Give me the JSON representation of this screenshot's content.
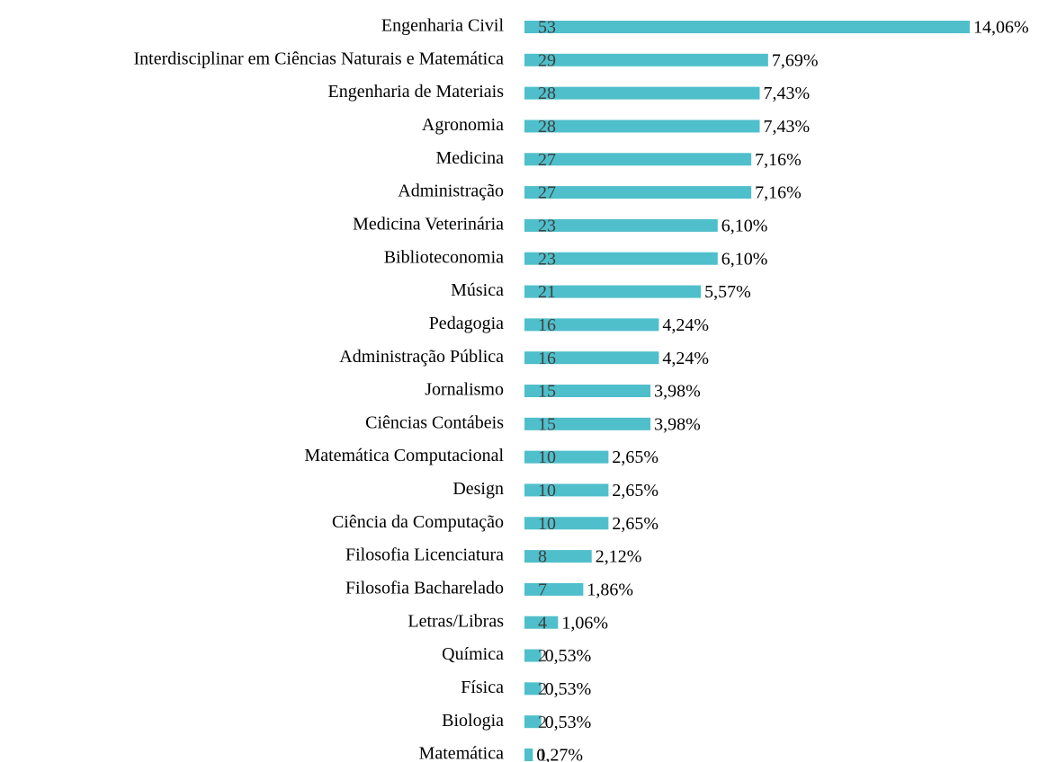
{
  "chart_data": {
    "type": "barh",
    "categories": [
      "Engenharia Civil",
      "Interdisciplinar em Ciências Naturais e Matemática",
      "Engenharia de Materiais",
      "Agronomia",
      "Medicina",
      "Administração",
      "Medicina Veterinária",
      "Biblioteconomia",
      "Música",
      "Pedagogia",
      "Administração Pública",
      "Jornalismo",
      "Ciências Contábeis",
      "Matemática Computacional",
      "Design",
      "Ciência da Computação",
      "Filosofia Licenciatura",
      "Filosofia Bacharelado",
      "Letras/Libras",
      "Química",
      "Física",
      "Biologia",
      "Matemática"
    ],
    "values": [
      53,
      29,
      28,
      28,
      27,
      27,
      23,
      23,
      21,
      16,
      16,
      15,
      15,
      10,
      10,
      10,
      8,
      7,
      4,
      2,
      2,
      2,
      1
    ],
    "shares": [
      14.06,
      7.69,
      7.43,
      7.43,
      7.16,
      7.16,
      6.1,
      6.1,
      5.57,
      4.24,
      4.24,
      3.98,
      3.98,
      2.65,
      2.65,
      2.65,
      2.12,
      1.86,
      1.06,
      0.53,
      0.53,
      0.53,
      0.27
    ],
    "share_labels": [
      "14,06%",
      "7,69%",
      "7,43%",
      "7,43%",
      "7,16%",
      "7,16%",
      "6,10%",
      "6,10%",
      "5,57%",
      "4,24%",
      "4,24%",
      "3,98%",
      "3,98%",
      "2,65%",
      "2,65%",
      "2,65%",
      "2,12%",
      "1,86%",
      "1,06%",
      "0,53%",
      "0,53%",
      "0,53%",
      "0,27%"
    ],
    "color": "#4fbfcb"
  }
}
